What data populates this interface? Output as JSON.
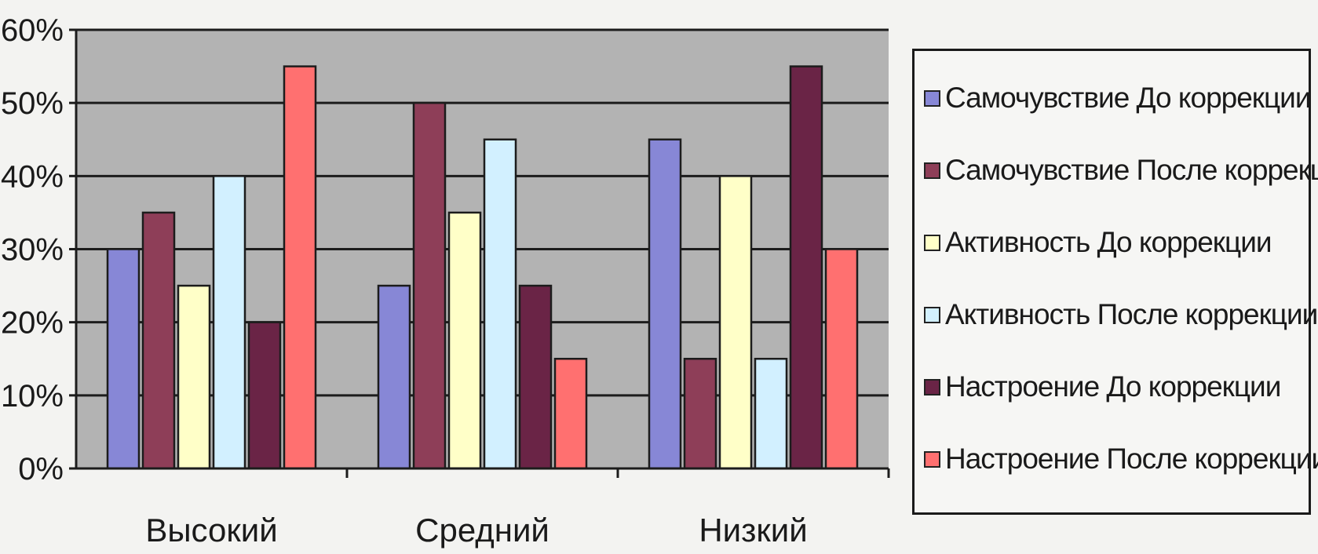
{
  "chart_data": {
    "type": "bar",
    "categories": [
      "Высокий",
      "Средний",
      "Низкий"
    ],
    "series": [
      {
        "name": "Самочувствие До коррекции",
        "color": "#8787d6",
        "values": [
          30,
          25,
          45
        ]
      },
      {
        "name": "Самочувствие После коррекции",
        "color": "#8e3e58",
        "values": [
          35,
          50,
          15
        ]
      },
      {
        "name": "Активность До коррекции",
        "color": "#ffffc8",
        "values": [
          25,
          35,
          40
        ]
      },
      {
        "name": "Активность После коррекции",
        "color": "#d2f0ff",
        "values": [
          40,
          45,
          15
        ]
      },
      {
        "name": "Настроение До коррекции",
        "color": "#6a2446",
        "values": [
          20,
          25,
          55
        ]
      },
      {
        "name": "Настроение После коррекции",
        "color": "#ff7070",
        "values": [
          55,
          15,
          30
        ]
      }
    ],
    "ylim": [
      0,
      60
    ],
    "yticks": [
      "0%",
      "10%",
      "20%",
      "30%",
      "40%",
      "50%",
      "60%"
    ],
    "grid": true,
    "legend_position": "right",
    "plot_background": "#b3b3b3"
  }
}
